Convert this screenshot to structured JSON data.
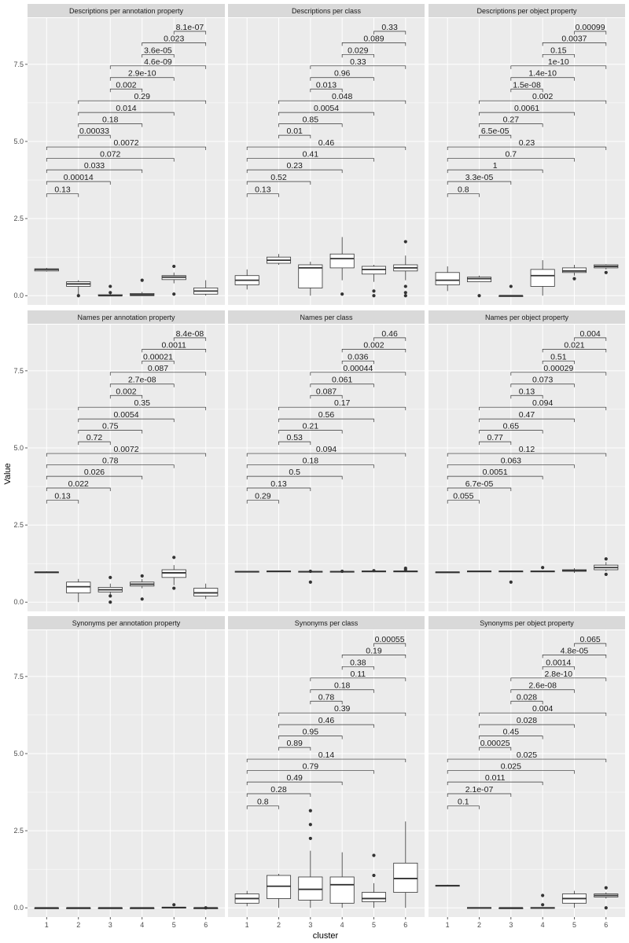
{
  "figure": {
    "background": "#ffffff",
    "panel_bg": "#ebebeb",
    "strip_bg": "#d9d9d9",
    "grid_color": "#ffffff",
    "box_fill": "#ffffff",
    "box_stroke": "#333333"
  },
  "chart_data": {
    "type": "boxplot",
    "facet_layout": {
      "rows": 3,
      "cols": 3
    },
    "x": {
      "label": "cluster",
      "categories": [
        "1",
        "2",
        "3",
        "4",
        "5",
        "6"
      ]
    },
    "y": {
      "label": "Value",
      "lim": [
        -0.3,
        9.0
      ],
      "ticks": [
        0.0,
        2.5,
        5.0,
        7.5
      ],
      "tick_labels": [
        "0.0",
        "2.5",
        "5.0",
        "7.5"
      ]
    },
    "grid": true,
    "bracket_pairs": [
      [
        1,
        2
      ],
      [
        1,
        3
      ],
      [
        1,
        4
      ],
      [
        1,
        5
      ],
      [
        1,
        6
      ],
      [
        2,
        3
      ],
      [
        2,
        4
      ],
      [
        2,
        5
      ],
      [
        2,
        6
      ],
      [
        3,
        4
      ],
      [
        3,
        5
      ],
      [
        3,
        6
      ],
      [
        4,
        5
      ],
      [
        4,
        6
      ],
      [
        5,
        6
      ]
    ],
    "bracket_y": [
      3.3,
      3.7,
      4.08,
      4.45,
      4.82,
      5.2,
      5.57,
      5.94,
      6.32,
      6.7,
      7.07,
      7.45,
      7.82,
      8.2,
      8.57
    ],
    "facets": [
      {
        "title": "Descriptions per annotation property",
        "boxes": [
          [
            0.78,
            0.8,
            0.85,
            0.87,
            0.9
          ],
          [
            0.0,
            0.3,
            0.38,
            0.45,
            0.5
          ],
          [
            0.0,
            0.0,
            0.0,
            0.03,
            0.1
          ],
          [
            0.0,
            0.0,
            0.03,
            0.07,
            0.12
          ],
          [
            0.4,
            0.52,
            0.6,
            0.65,
            0.75
          ],
          [
            0.0,
            0.05,
            0.15,
            0.25,
            0.5
          ]
        ],
        "outliers": [
          [],
          [
            0.0
          ],
          [
            0.3,
            0.1
          ],
          [
            0.5
          ],
          [
            0.95,
            0.05
          ],
          []
        ],
        "pvalues": [
          "0.13",
          "0.00014",
          "0.033",
          "0.072",
          "0.0072",
          "0.00033",
          "0.18",
          "0.014",
          "0.29",
          "0.002",
          "2.9e-10",
          "4.6e-09",
          "3.6e-05",
          "0.023",
          "8.1e-07"
        ]
      },
      {
        "title": "Descriptions per class",
        "boxes": [
          [
            0.2,
            0.35,
            0.5,
            0.65,
            0.85
          ],
          [
            1.0,
            1.05,
            1.15,
            1.25,
            1.35
          ],
          [
            0.0,
            0.25,
            0.9,
            1.0,
            1.1
          ],
          [
            0.5,
            0.9,
            1.2,
            1.35,
            1.9
          ],
          [
            0.45,
            0.7,
            0.85,
            0.95,
            1.0
          ],
          [
            0.5,
            0.8,
            0.9,
            1.0,
            1.3
          ]
        ],
        "outliers": [
          [],
          [],
          [],
          [
            0.05
          ],
          [
            0.15,
            0.0
          ],
          [
            1.75,
            0.3,
            0.1,
            0.0
          ]
        ],
        "pvalues": [
          "0.13",
          "0.52",
          "0.23",
          "0.41",
          "0.46",
          "0.01",
          "0.85",
          "0.0054",
          "0.048",
          "0.013",
          "0.96",
          "0.33",
          "0.029",
          "0.089",
          "0.33"
        ]
      },
      {
        "title": "Descriptions per object property",
        "boxes": [
          [
            0.15,
            0.35,
            0.5,
            0.75,
            0.95
          ],
          [
            0.45,
            0.45,
            0.55,
            0.6,
            0.65
          ],
          [
            0.0,
            0.0,
            0.0,
            0.0,
            0.02
          ],
          [
            0.0,
            0.3,
            0.65,
            0.85,
            1.15
          ],
          [
            0.65,
            0.75,
            0.8,
            0.9,
            1.0
          ],
          [
            0.85,
            0.9,
            0.95,
            1.0,
            1.02
          ]
        ],
        "outliers": [
          [],
          [
            0.0
          ],
          [
            0.3
          ],
          [],
          [
            0.55
          ],
          [
            0.75
          ]
        ],
        "pvalues": [
          "0.8",
          "3.3e-05",
          "1",
          "0.7",
          "0.23",
          "6.5e-05",
          "0.27",
          "0.0061",
          "0.002",
          "1.5e-08",
          "1.4e-10",
          "1e-10",
          "0.15",
          "0.0037",
          "0.00099"
        ]
      },
      {
        "title": "Names per annotation property",
        "boxes": [
          [
            0.95,
            0.95,
            0.97,
            0.98,
            1.0
          ],
          [
            0.0,
            0.3,
            0.5,
            0.65,
            0.75
          ],
          [
            0.2,
            0.33,
            0.4,
            0.48,
            0.6
          ],
          [
            0.45,
            0.52,
            0.58,
            0.65,
            0.75
          ],
          [
            0.55,
            0.8,
            0.95,
            1.05,
            1.2
          ],
          [
            0.1,
            0.2,
            0.3,
            0.45,
            0.6
          ]
        ],
        "outliers": [
          [],
          [],
          [
            0.8,
            0.2,
            0.0
          ],
          [
            0.85,
            0.1
          ],
          [
            1.45,
            0.45
          ],
          []
        ],
        "pvalues": [
          "0.13",
          "0.022",
          "0.026",
          "0.78",
          "0.0072",
          "0.72",
          "0.75",
          "0.0054",
          "0.35",
          "0.002",
          "2.7e-08",
          "0.087",
          "0.00021",
          "0.0011",
          "8.4e-08"
        ]
      },
      {
        "title": "Names per class",
        "boxes": [
          [
            0.97,
            0.98,
            0.99,
            1.0,
            1.0
          ],
          [
            0.98,
            0.99,
            1.0,
            1.01,
            1.02
          ],
          [
            0.97,
            0.98,
            0.99,
            1.0,
            1.01
          ],
          [
            0.97,
            0.98,
            0.99,
            1.0,
            1.01
          ],
          [
            0.98,
            0.99,
            1.0,
            1.01,
            1.02
          ],
          [
            0.97,
            0.98,
            1.0,
            1.01,
            1.03
          ]
        ],
        "outliers": [
          [],
          [],
          [
            1.0,
            0.65
          ],
          [
            1.0
          ],
          [
            1.02
          ],
          [
            1.1,
            1.05
          ]
        ],
        "pvalues": [
          "0.29",
          "0.13",
          "0.5",
          "0.18",
          "0.094",
          "0.53",
          "0.21",
          "0.56",
          "0.17",
          "0.087",
          "0.061",
          "0.00044",
          "0.036",
          "0.002",
          "0.46"
        ]
      },
      {
        "title": "Names per object property",
        "boxes": [
          [
            0.95,
            0.96,
            0.97,
            0.98,
            0.99
          ],
          [
            0.98,
            0.99,
            1.0,
            1.01,
            1.02
          ],
          [
            0.98,
            0.99,
            1.0,
            1.01,
            1.02
          ],
          [
            0.98,
            0.99,
            1.0,
            1.01,
            1.02
          ],
          [
            0.95,
            1.0,
            1.02,
            1.05,
            1.1
          ],
          [
            1.0,
            1.05,
            1.12,
            1.2,
            1.3
          ]
        ],
        "outliers": [
          [],
          [],
          [
            0.65
          ],
          [
            1.12
          ],
          [],
          [
            1.4,
            0.9
          ]
        ],
        "pvalues": [
          "0.055",
          "6.7e-05",
          "0.0051",
          "0.063",
          "0.12",
          "0.77",
          "0.65",
          "0.47",
          "0.094",
          "0.13",
          "0.073",
          "0.00029",
          "0.51",
          "0.021",
          "0.004"
        ]
      },
      {
        "title": "Synonyms per annotation property",
        "boxes": [
          [
            0,
            0,
            0,
            0,
            0
          ],
          [
            0,
            0,
            0,
            0,
            0
          ],
          [
            0,
            0,
            0,
            0,
            0
          ],
          [
            0,
            0,
            0,
            0,
            0
          ],
          [
            0,
            0,
            0.01,
            0.02,
            0.03
          ],
          [
            0,
            0,
            0,
            0,
            0
          ]
        ],
        "outliers": [
          [],
          [],
          [],
          [],
          [
            0.1
          ],
          [
            0.0
          ]
        ],
        "pvalues": []
      },
      {
        "title": "Synonyms per class",
        "boxes": [
          [
            0.05,
            0.15,
            0.3,
            0.45,
            0.55
          ],
          [
            0.0,
            0.3,
            0.7,
            1.05,
            1.1
          ],
          [
            0.0,
            0.25,
            0.6,
            1.0,
            1.85
          ],
          [
            0.0,
            0.15,
            0.75,
            1.0,
            1.8
          ],
          [
            0.0,
            0.2,
            0.3,
            0.5,
            0.8
          ],
          [
            0.0,
            0.5,
            0.95,
            1.45,
            2.8
          ]
        ],
        "outliers": [
          [],
          [],
          [
            3.15,
            2.7,
            2.25
          ],
          [],
          [
            1.7,
            1.05
          ],
          []
        ],
        "pvalues": [
          "0.8",
          "0.28",
          "0.49",
          "0.79",
          "0.14",
          "0.89",
          "0.95",
          "0.46",
          "0.39",
          "0.78",
          "0.18",
          "0.11",
          "0.38",
          "0.19",
          "0.00055"
        ]
      },
      {
        "title": "Synonyms per object property",
        "boxes": [
          [
            0.7,
            0.71,
            0.72,
            0.73,
            0.75
          ],
          [
            0.0,
            0.0,
            0.0,
            0.01,
            0.02
          ],
          [
            0.0,
            0.0,
            0.0,
            0.0,
            0.01
          ],
          [
            0.0,
            0.0,
            0.0,
            0.01,
            0.02
          ],
          [
            0.0,
            0.15,
            0.3,
            0.45,
            0.55
          ],
          [
            0.3,
            0.35,
            0.4,
            0.45,
            0.5
          ]
        ],
        "outliers": [
          [],
          [],
          [],
          [
            0.4,
            0.1
          ],
          [],
          [
            0.65,
            0.0
          ]
        ],
        "pvalues": [
          "0.1",
          "2.1e-07",
          "0.011",
          "0.025",
          "0.025",
          "0.00025",
          "0.45",
          "0.028",
          "0.004",
          "0.028",
          "2.6e-08",
          "2.8e-10",
          "0.0014",
          "4.8e-05",
          "0.065"
        ]
      }
    ]
  }
}
